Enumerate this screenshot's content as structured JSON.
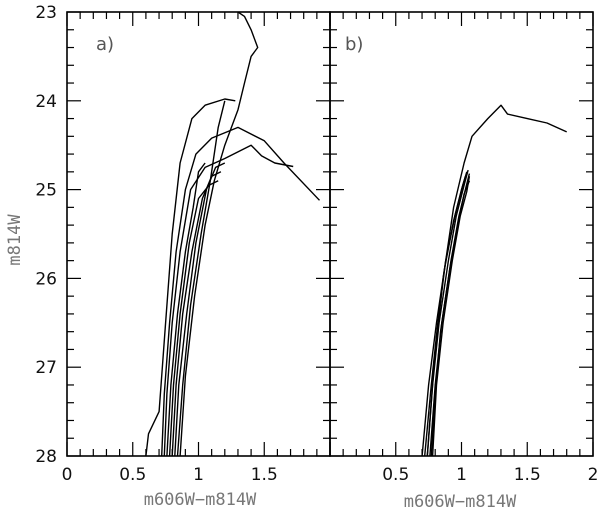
{
  "chart_data": [
    {
      "type": "line",
      "panel_label": "a)",
      "xlabel": "m606W−m814W",
      "ylabel": "m814W",
      "xlim": [
        0,
        2
      ],
      "ylim": [
        28,
        23
      ],
      "y_inverted": true,
      "x_major_ticks": [
        0,
        0.5,
        1,
        1.5
      ],
      "x_tick_labels": [
        "0",
        "0.5",
        "1",
        "1.5"
      ],
      "y_major_ticks": [
        23,
        24,
        25,
        26,
        27,
        28
      ],
      "y_tick_labels": [
        "23",
        "24",
        "25",
        "26",
        "27",
        "28"
      ],
      "series": [
        {
          "points": [
            [
              0.6,
              28.0
            ],
            [
              0.62,
              27.75
            ],
            [
              0.7,
              27.5
            ],
            [
              0.75,
              26.5
            ],
            [
              0.8,
              25.5
            ],
            [
              0.86,
              24.7
            ],
            [
              0.95,
              24.2
            ],
            [
              1.05,
              24.05
            ],
            [
              1.2,
              23.98
            ],
            [
              1.28,
              24.0
            ]
          ]
        },
        {
          "points": [
            [
              0.72,
              28.0
            ],
            [
              0.74,
              27.3
            ],
            [
              0.78,
              26.5
            ],
            [
              0.83,
              25.7
            ],
            [
              0.9,
              25.0
            ],
            [
              0.98,
              24.6
            ],
            [
              1.1,
              24.42
            ],
            [
              1.3,
              24.3
            ],
            [
              1.5,
              24.45
            ],
            [
              1.65,
              24.7
            ],
            [
              1.92,
              25.12
            ]
          ]
        },
        {
          "points": [
            [
              0.74,
              28.0
            ],
            [
              0.76,
              27.3
            ],
            [
              0.8,
              26.5
            ],
            [
              0.86,
              25.7
            ],
            [
              0.94,
              25.0
            ],
            [
              1.05,
              24.75
            ],
            [
              1.2,
              24.65
            ],
            [
              1.4,
              24.5
            ],
            [
              1.48,
              24.62
            ],
            [
              1.58,
              24.7
            ],
            [
              1.72,
              24.74
            ]
          ]
        },
        {
          "points": [
            [
              0.76,
              28.0
            ],
            [
              0.79,
              27.2
            ],
            [
              0.84,
              26.4
            ],
            [
              0.9,
              25.7
            ],
            [
              0.96,
              25.2
            ],
            [
              1.0,
              24.8
            ],
            [
              1.05,
              24.7
            ]
          ]
        },
        {
          "points": [
            [
              0.78,
              28.0
            ],
            [
              0.81,
              27.2
            ],
            [
              0.86,
              26.4
            ],
            [
              0.93,
              25.6
            ],
            [
              1.0,
              25.1
            ],
            [
              1.08,
              24.95
            ],
            [
              1.15,
              24.9
            ]
          ]
        },
        {
          "points": [
            [
              0.8,
              28.0
            ],
            [
              0.83,
              27.2
            ],
            [
              0.88,
              26.4
            ],
            [
              0.95,
              25.7
            ],
            [
              1.03,
              25.1
            ],
            [
              1.1,
              24.85
            ],
            [
              1.17,
              24.8
            ]
          ]
        },
        {
          "points": [
            [
              0.82,
              28.0
            ],
            [
              0.85,
              27.2
            ],
            [
              0.91,
              26.4
            ],
            [
              0.98,
              25.6
            ],
            [
              1.06,
              25.0
            ],
            [
              1.13,
              24.75
            ],
            [
              1.2,
              24.7
            ]
          ]
        },
        {
          "points": [
            [
              0.84,
              28.0
            ],
            [
              0.88,
              27.2
            ],
            [
              0.94,
              26.3
            ],
            [
              1.02,
              25.5
            ],
            [
              1.09,
              24.9
            ],
            [
              1.15,
              24.3
            ],
            [
              1.2,
              24.0
            ]
          ]
        },
        {
          "points": [
            [
              0.86,
              28.0
            ],
            [
              0.9,
              27.1
            ],
            [
              0.97,
              26.2
            ],
            [
              1.05,
              25.4
            ],
            [
              1.12,
              24.9
            ],
            [
              1.2,
              24.5
            ],
            [
              1.3,
              24.1
            ],
            [
              1.35,
              23.8
            ],
            [
              1.4,
              23.5
            ],
            [
              1.45,
              23.4
            ],
            [
              1.4,
              23.2
            ],
            [
              1.35,
              23.05
            ],
            [
              1.3,
              23.0
            ]
          ]
        }
      ]
    },
    {
      "type": "line",
      "panel_label": "b)",
      "xlabel": "m606W−m814W",
      "xlim": [
        0,
        2
      ],
      "ylim": [
        28,
        23
      ],
      "y_inverted": true,
      "x_major_ticks": [
        0.5,
        1,
        1.5,
        2
      ],
      "x_tick_labels": [
        "0.5",
        "1",
        "1.5",
        "2"
      ],
      "series": [
        {
          "points": [
            [
              0.74,
              28.0
            ],
            [
              0.79,
              27.0
            ],
            [
              0.86,
              26.0
            ],
            [
              0.94,
              25.2
            ],
            [
              1.02,
              24.7
            ],
            [
              1.08,
              24.4
            ],
            [
              1.2,
              24.2
            ],
            [
              1.3,
              24.05
            ],
            [
              1.35,
              24.15
            ],
            [
              1.5,
              24.2
            ],
            [
              1.65,
              24.25
            ],
            [
              1.8,
              24.35
            ]
          ]
        },
        {
          "points": [
            [
              0.74,
              28.0
            ],
            [
              0.78,
              27.2
            ],
            [
              0.83,
              26.5
            ],
            [
              0.9,
              25.8
            ],
            [
              0.96,
              25.3
            ],
            [
              1.02,
              24.95
            ],
            [
              1.05,
              24.78
            ]
          ]
        },
        {
          "points": [
            [
              0.76,
              28.0
            ],
            [
              0.8,
              27.2
            ],
            [
              0.85,
              26.5
            ],
            [
              0.92,
              25.8
            ],
            [
              0.98,
              25.3
            ],
            [
              1.03,
              25.0
            ],
            [
              1.06,
              24.82
            ]
          ]
        },
        {
          "points": [
            [
              0.72,
              28.0
            ],
            [
              0.77,
              27.2
            ],
            [
              0.82,
              26.5
            ],
            [
              0.88,
              25.8
            ],
            [
              0.95,
              25.3
            ],
            [
              1.01,
              24.95
            ],
            [
              1.04,
              24.8
            ]
          ]
        },
        {
          "points": [
            [
              0.78,
              28.0
            ],
            [
              0.81,
              27.2
            ],
            [
              0.86,
              26.5
            ],
            [
              0.93,
              25.8
            ],
            [
              0.99,
              25.3
            ],
            [
              1.04,
              25.02
            ],
            [
              1.06,
              24.85
            ]
          ]
        },
        {
          "points": [
            [
              0.7,
              28.0
            ],
            [
              0.75,
              27.2
            ],
            [
              0.81,
              26.5
            ],
            [
              0.87,
              25.9
            ],
            [
              0.94,
              25.35
            ],
            [
              1.0,
              25.0
            ],
            [
              1.03,
              24.85
            ]
          ]
        },
        {
          "points": [
            [
              0.77,
              28.0
            ],
            [
              0.8,
              27.3
            ],
            [
              0.84,
              26.6
            ],
            [
              0.91,
              25.9
            ],
            [
              0.97,
              25.4
            ],
            [
              1.02,
              25.05
            ],
            [
              1.06,
              24.9
            ]
          ]
        }
      ]
    }
  ]
}
